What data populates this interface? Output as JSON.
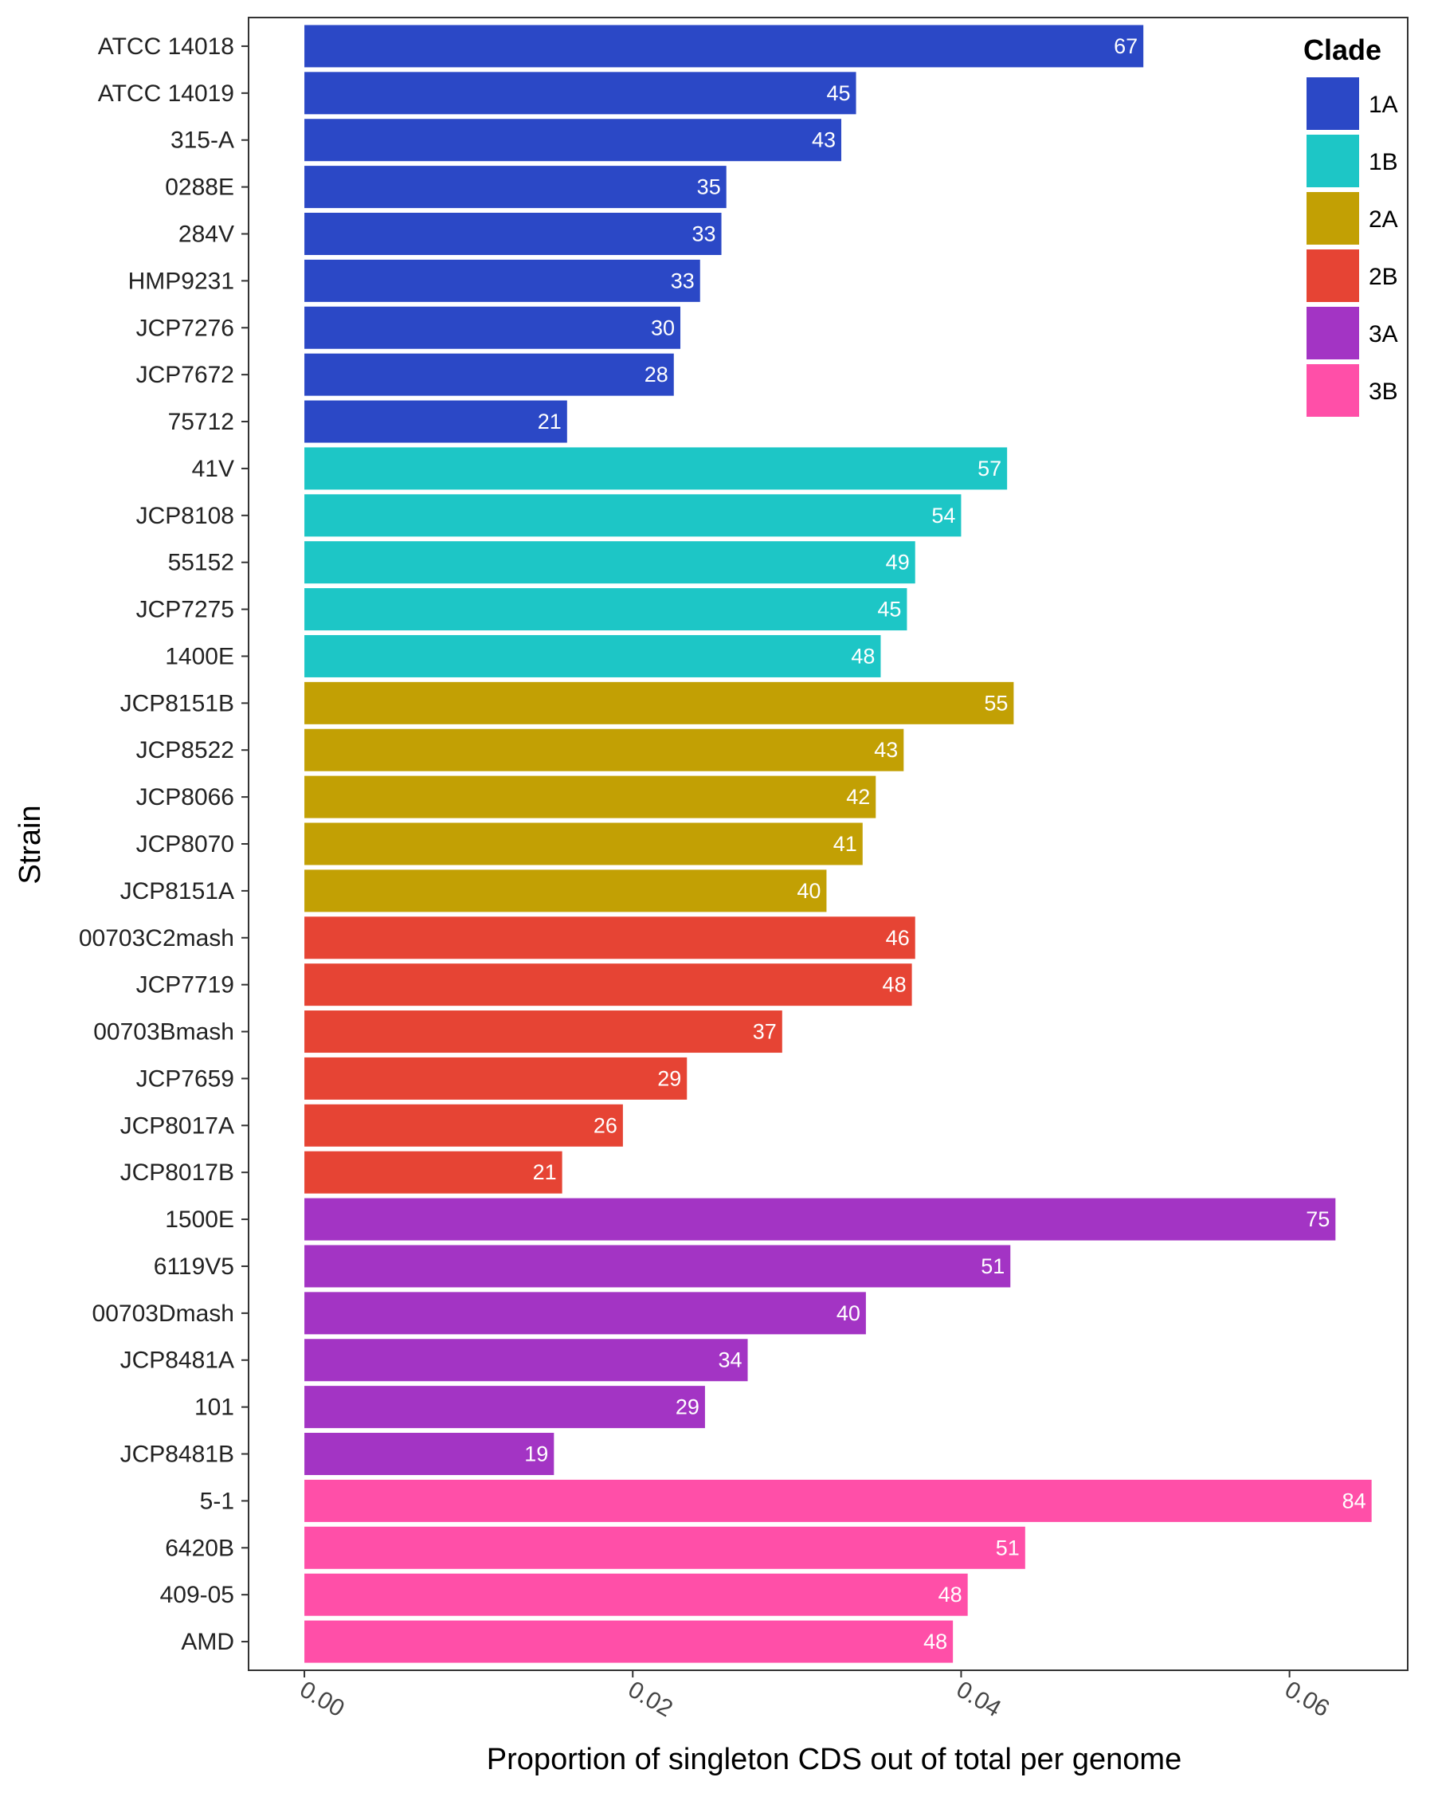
{
  "chart_data": {
    "type": "bar",
    "orientation": "horizontal",
    "xlabel": "Proportion of singleton CDS out of total per genome",
    "ylabel": "Strain",
    "xlim": [
      -0.0034,
      0.0672
    ],
    "x_ticks": [
      "0.00",
      "0.02",
      "0.04",
      "0.06"
    ],
    "x_tick_values": [
      0,
      0.02,
      0.04,
      0.06
    ],
    "grid": false,
    "legend": {
      "title": "Clade",
      "position": "top-right"
    },
    "series": [
      {
        "name": "1A",
        "color": "#2b48c6"
      },
      {
        "name": "1B",
        "color": "#1dc6c6"
      },
      {
        "name": "2A",
        "color": "#c2a004"
      },
      {
        "name": "2B",
        "color": "#e64434"
      },
      {
        "name": "3A",
        "color": "#a334c4"
      },
      {
        "name": "3B",
        "color": "#ff4fa8"
      }
    ],
    "bars": [
      {
        "strain": "ATCC 14018",
        "clade": "1A",
        "value": 0.0511,
        "count": "67"
      },
      {
        "strain": "ATCC 14019",
        "clade": "1A",
        "value": 0.0336,
        "count": "45"
      },
      {
        "strain": "315-A",
        "clade": "1A",
        "value": 0.0327,
        "count": "43"
      },
      {
        "strain": "0288E",
        "clade": "1A",
        "value": 0.0257,
        "count": "35"
      },
      {
        "strain": "284V",
        "clade": "1A",
        "value": 0.0254,
        "count": "33"
      },
      {
        "strain": "HMP9231",
        "clade": "1A",
        "value": 0.0241,
        "count": "33"
      },
      {
        "strain": "JCP7276",
        "clade": "1A",
        "value": 0.0229,
        "count": "30"
      },
      {
        "strain": "JCP7672",
        "clade": "1A",
        "value": 0.0225,
        "count": "28"
      },
      {
        "strain": "75712",
        "clade": "1A",
        "value": 0.016,
        "count": "21"
      },
      {
        "strain": "41V",
        "clade": "1B",
        "value": 0.0428,
        "count": "57"
      },
      {
        "strain": "JCP8108",
        "clade": "1B",
        "value": 0.04,
        "count": "54"
      },
      {
        "strain": "55152",
        "clade": "1B",
        "value": 0.0372,
        "count": "49"
      },
      {
        "strain": "JCP7275",
        "clade": "1B",
        "value": 0.0367,
        "count": "45"
      },
      {
        "strain": "1400E",
        "clade": "1B",
        "value": 0.0351,
        "count": "48"
      },
      {
        "strain": "JCP8151B",
        "clade": "2A",
        "value": 0.0432,
        "count": "55"
      },
      {
        "strain": "JCP8522",
        "clade": "2A",
        "value": 0.0365,
        "count": "43"
      },
      {
        "strain": "JCP8066",
        "clade": "2A",
        "value": 0.0348,
        "count": "42"
      },
      {
        "strain": "JCP8070",
        "clade": "2A",
        "value": 0.034,
        "count": "41"
      },
      {
        "strain": "JCP8151A",
        "clade": "2A",
        "value": 0.0318,
        "count": "40"
      },
      {
        "strain": "00703C2mash",
        "clade": "2B",
        "value": 0.0372,
        "count": "46"
      },
      {
        "strain": "JCP7719",
        "clade": "2B",
        "value": 0.037,
        "count": "48"
      },
      {
        "strain": "00703Bmash",
        "clade": "2B",
        "value": 0.0291,
        "count": "37"
      },
      {
        "strain": "JCP7659",
        "clade": "2B",
        "value": 0.0233,
        "count": "29"
      },
      {
        "strain": "JCP8017A",
        "clade": "2B",
        "value": 0.0194,
        "count": "26"
      },
      {
        "strain": "JCP8017B",
        "clade": "2B",
        "value": 0.0157,
        "count": "21"
      },
      {
        "strain": "1500E",
        "clade": "3A",
        "value": 0.0628,
        "count": "75"
      },
      {
        "strain": "6119V5",
        "clade": "3A",
        "value": 0.043,
        "count": "51"
      },
      {
        "strain": "00703Dmash",
        "clade": "3A",
        "value": 0.0342,
        "count": "40"
      },
      {
        "strain": "JCP8481A",
        "clade": "3A",
        "value": 0.027,
        "count": "34"
      },
      {
        "strain": "101",
        "clade": "3A",
        "value": 0.0244,
        "count": "29"
      },
      {
        "strain": "JCP8481B",
        "clade": "3A",
        "value": 0.0152,
        "count": "19"
      },
      {
        "strain": "5-1",
        "clade": "3B",
        "value": 0.065,
        "count": "84"
      },
      {
        "strain": "6420B",
        "clade": "3B",
        "value": 0.0439,
        "count": "51"
      },
      {
        "strain": "409-05",
        "clade": "3B",
        "value": 0.0404,
        "count": "48"
      },
      {
        "strain": "AMD",
        "clade": "3B",
        "value": 0.0395,
        "count": "48"
      }
    ]
  }
}
